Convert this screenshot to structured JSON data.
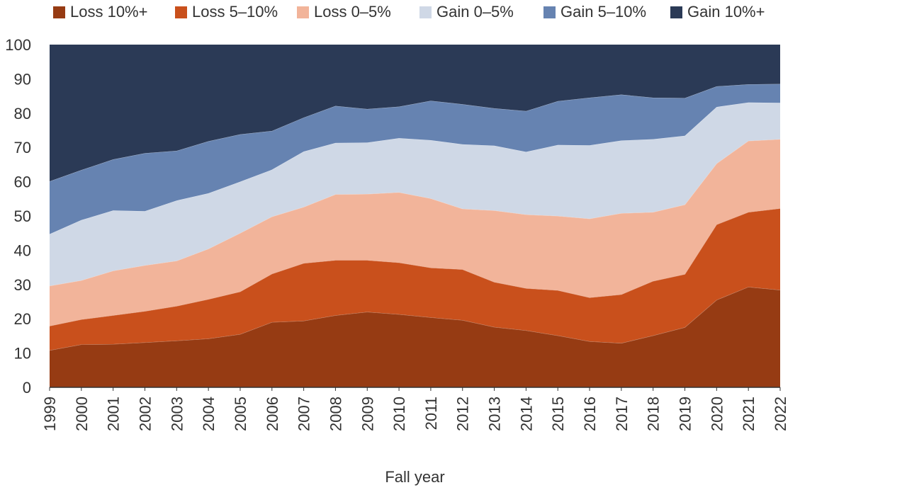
{
  "chart_data": {
    "type": "area",
    "stacked": true,
    "xlabel": "Fall year",
    "ylabel": "",
    "ylim": [
      0,
      100
    ],
    "yticks": [
      0,
      10,
      20,
      30,
      40,
      50,
      60,
      70,
      80,
      90,
      100
    ],
    "legend_position": "top",
    "x": [
      "1999",
      "2000",
      "2001",
      "2002",
      "2003",
      "2004",
      "2005",
      "2006",
      "2007",
      "2008",
      "2009",
      "2010",
      "2011",
      "2012",
      "2013",
      "2014",
      "2015",
      "2016",
      "2017",
      "2018",
      "2019",
      "2020",
      "2021",
      "2022"
    ],
    "series": [
      {
        "name": "Loss 10%+",
        "color": "#963b13",
        "values": [
          10.8,
          12.5,
          12.6,
          13.1,
          13.6,
          14.2,
          15.5,
          19.0,
          19.4,
          21.0,
          22.0,
          21.3,
          20.4,
          19.6,
          17.6,
          16.6,
          15.1,
          13.4,
          12.9,
          15.1,
          17.5,
          25.5,
          29.3,
          28.4
        ]
      },
      {
        "name": "Loss 5–10%",
        "color": "#c9501c",
        "values": [
          7.1,
          7.3,
          8.4,
          9.1,
          10.1,
          11.5,
          12.4,
          14.1,
          16.8,
          16.1,
          15.1,
          15.1,
          14.5,
          14.8,
          13.1,
          12.3,
          13.2,
          12.8,
          14.2,
          15.9,
          15.5,
          22.0,
          21.8,
          23.8
        ]
      },
      {
        "name": "Loss 0–5%",
        "color": "#f2b49a",
        "values": [
          11.7,
          11.4,
          13.0,
          13.4,
          13.2,
          14.7,
          17.1,
          16.7,
          16.4,
          19.2,
          19.3,
          20.5,
          20.2,
          17.7,
          20.9,
          21.5,
          21.7,
          23.0,
          23.7,
          20.1,
          20.3,
          17.8,
          20.8,
          20.2
        ]
      },
      {
        "name": "Gain 0–5%",
        "color": "#cfd8e6",
        "values": [
          15.1,
          17.6,
          17.6,
          15.8,
          17.6,
          16.2,
          15.0,
          13.7,
          16.2,
          15.0,
          15.0,
          15.8,
          17.0,
          18.8,
          18.9,
          18.3,
          20.7,
          21.4,
          21.2,
          21.3,
          20.1,
          16.5,
          11.2,
          10.6
        ]
      },
      {
        "name": "Gain 5–10%",
        "color": "#6683b1",
        "values": [
          15.4,
          14.6,
          14.9,
          16.9,
          14.5,
          15.2,
          13.8,
          11.3,
          9.9,
          10.8,
          9.8,
          9.2,
          11.5,
          11.7,
          10.9,
          11.9,
          12.8,
          13.9,
          13.4,
          12.1,
          11.0,
          6.0,
          5.3,
          5.5
        ]
      },
      {
        "name": "Gain 10%+",
        "color": "#2b3a56",
        "values": [
          39.9,
          36.6,
          33.5,
          31.7,
          31.0,
          28.2,
          26.2,
          25.2,
          21.3,
          17.9,
          18.8,
          18.1,
          16.4,
          17.4,
          18.6,
          19.4,
          16.5,
          15.5,
          14.6,
          15.5,
          15.6,
          12.2,
          11.6,
          11.5
        ]
      }
    ]
  }
}
